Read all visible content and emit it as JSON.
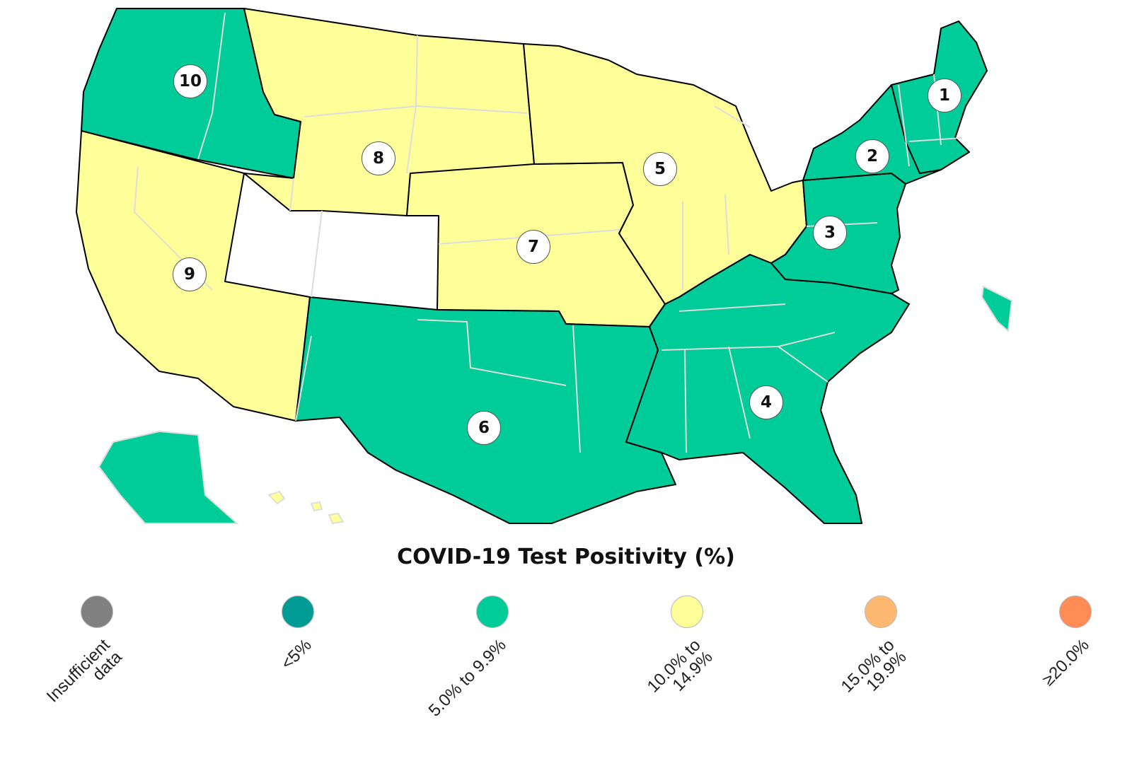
{
  "colors": {
    "insufficient": "#808080",
    "lt5": "#009b95",
    "p5_9": "#00cc99",
    "p10_14": "#ffff99",
    "p15_19": "#ffb870",
    "ge20": "#ff8c55",
    "state_border": "#dddddd",
    "region_border": "#000000"
  },
  "regions": [
    {
      "number": "1",
      "category": "5.0% to 9.9%"
    },
    {
      "number": "2",
      "category": "5.0% to 9.9%"
    },
    {
      "number": "3",
      "category": "5.0% to 9.9%"
    },
    {
      "number": "4",
      "category": "5.0% to 9.9%"
    },
    {
      "number": "5",
      "category": "10.0% to 14.9%"
    },
    {
      "number": "6",
      "category": "5.0% to 9.9%"
    },
    {
      "number": "7",
      "category": "10.0% to 14.9%"
    },
    {
      "number": "8",
      "category": "10.0% to 14.9%"
    },
    {
      "number": "9",
      "category": "10.0% to 14.9%"
    },
    {
      "number": "10",
      "category": "5.0% to 9.9%"
    }
  ],
  "legend": {
    "title": "COVID-19 Test Positivity (%)",
    "items": [
      {
        "label": "Insufficient\ndata",
        "color": "#808080"
      },
      {
        "label": "<5%",
        "color": "#009b95"
      },
      {
        "label": "5.0% to 9.9%",
        "color": "#00cc99"
      },
      {
        "label": "10.0% to\n14.9%",
        "color": "#ffff99"
      },
      {
        "label": "15.0% to\n19.9%",
        "color": "#ffb870"
      },
      {
        "label": "≥20.0%",
        "color": "#ff8c55"
      }
    ]
  }
}
